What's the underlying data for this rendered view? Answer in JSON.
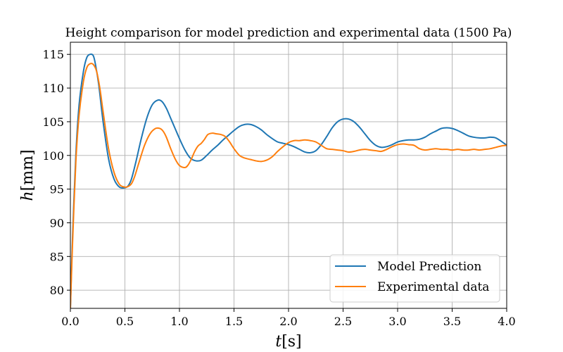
{
  "chart_data": {
    "type": "line",
    "title": "Height comparison for model prediction and experimental data (1500 Pa)",
    "xlabel_symbol": "t",
    "xlabel_unit": "[s]",
    "ylabel_symbol": "h",
    "ylabel_unit": "[mm]",
    "xlim": [
      0.0,
      4.0
    ],
    "ylim": [
      77.3,
      116.8
    ],
    "xticks": [
      0.0,
      0.5,
      1.0,
      1.5,
      2.0,
      2.5,
      3.0,
      3.5,
      4.0
    ],
    "xtick_labels": [
      "0.0",
      "0.5",
      "1.0",
      "1.5",
      "2.0",
      "2.5",
      "3.0",
      "3.5",
      "4.0"
    ],
    "yticks": [
      80,
      85,
      90,
      95,
      100,
      105,
      110,
      115
    ],
    "ytick_labels": [
      "80",
      "85",
      "90",
      "95",
      "100",
      "105",
      "110",
      "115"
    ],
    "grid": true,
    "legend_position": "lower-right",
    "series": [
      {
        "name": "Model Prediction",
        "color": "#1f77b4",
        "x": [
          0.0,
          0.02,
          0.05,
          0.08,
          0.12,
          0.15,
          0.18,
          0.21,
          0.23,
          0.26,
          0.3,
          0.35,
          0.4,
          0.45,
          0.5,
          0.53,
          0.56,
          0.6,
          0.65,
          0.7,
          0.75,
          0.8,
          0.84,
          0.88,
          0.92,
          0.96,
          1.0,
          1.05,
          1.1,
          1.15,
          1.2,
          1.25,
          1.3,
          1.35,
          1.4,
          1.45,
          1.5,
          1.55,
          1.6,
          1.65,
          1.7,
          1.75,
          1.8,
          1.85,
          1.9,
          1.95,
          2.0,
          2.05,
          2.1,
          2.15,
          2.2,
          2.25,
          2.3,
          2.35,
          2.4,
          2.45,
          2.5,
          2.55,
          2.6,
          2.65,
          2.7,
          2.75,
          2.8,
          2.85,
          2.9,
          2.95,
          3.0,
          3.05,
          3.1,
          3.15,
          3.2,
          3.25,
          3.3,
          3.35,
          3.4,
          3.45,
          3.5,
          3.55,
          3.6,
          3.65,
          3.7,
          3.75,
          3.8,
          3.85,
          3.9,
          3.95,
          4.0
        ],
        "y": [
          77.3,
          88.0,
          100.0,
          107.5,
          112.5,
          114.5,
          115.0,
          114.8,
          113.5,
          110.5,
          105.0,
          99.5,
          96.5,
          95.3,
          95.2,
          95.5,
          96.5,
          99.0,
          102.5,
          105.5,
          107.5,
          108.2,
          108.0,
          107.0,
          105.5,
          104.0,
          102.5,
          100.8,
          99.6,
          99.2,
          99.3,
          100.0,
          100.8,
          101.5,
          102.3,
          103.0,
          103.7,
          104.3,
          104.6,
          104.6,
          104.3,
          103.8,
          103.1,
          102.5,
          102.0,
          101.8,
          101.6,
          101.3,
          100.9,
          100.5,
          100.4,
          100.7,
          101.6,
          102.8,
          104.1,
          105.0,
          105.4,
          105.4,
          105.0,
          104.2,
          103.2,
          102.2,
          101.5,
          101.2,
          101.3,
          101.6,
          102.0,
          102.2,
          102.3,
          102.3,
          102.4,
          102.7,
          103.2,
          103.6,
          104.0,
          104.1,
          104.0,
          103.7,
          103.3,
          102.9,
          102.7,
          102.6,
          102.6,
          102.7,
          102.6,
          102.1,
          101.5
        ]
      },
      {
        "name": "Experimental data",
        "color": "#ff7f0e",
        "x": [
          0.0,
          0.02,
          0.05,
          0.08,
          0.12,
          0.15,
          0.18,
          0.21,
          0.24,
          0.27,
          0.3,
          0.35,
          0.4,
          0.45,
          0.5,
          0.53,
          0.56,
          0.59,
          0.63,
          0.68,
          0.73,
          0.78,
          0.82,
          0.85,
          0.88,
          0.92,
          0.96,
          1.0,
          1.05,
          1.08,
          1.11,
          1.14,
          1.17,
          1.2,
          1.23,
          1.26,
          1.3,
          1.34,
          1.38,
          1.42,
          1.46,
          1.5,
          1.55,
          1.6,
          1.65,
          1.7,
          1.75,
          1.8,
          1.85,
          1.9,
          1.95,
          2.0,
          2.05,
          2.1,
          2.15,
          2.2,
          2.25,
          2.3,
          2.35,
          2.4,
          2.45,
          2.5,
          2.55,
          2.6,
          2.65,
          2.7,
          2.75,
          2.8,
          2.85,
          2.9,
          2.95,
          3.0,
          3.05,
          3.1,
          3.15,
          3.2,
          3.25,
          3.3,
          3.35,
          3.4,
          3.45,
          3.5,
          3.55,
          3.6,
          3.65,
          3.7,
          3.75,
          3.8,
          3.85,
          3.9,
          3.95,
          4.0
        ],
        "y": [
          77.3,
          87.0,
          99.0,
          106.0,
          111.0,
          113.0,
          113.6,
          113.5,
          112.5,
          110.0,
          106.5,
          101.0,
          97.5,
          95.7,
          95.3,
          95.4,
          95.8,
          96.9,
          99.0,
          101.5,
          103.2,
          104.0,
          104.0,
          103.6,
          102.7,
          101.0,
          99.5,
          98.5,
          98.2,
          98.6,
          99.5,
          100.6,
          101.4,
          101.8,
          102.4,
          103.1,
          103.3,
          103.2,
          103.1,
          102.8,
          102.0,
          101.0,
          100.0,
          99.6,
          99.4,
          99.2,
          99.1,
          99.3,
          99.8,
          100.6,
          101.3,
          101.9,
          102.2,
          102.2,
          102.3,
          102.2,
          102.0,
          101.5,
          101.0,
          100.9,
          100.8,
          100.7,
          100.5,
          100.6,
          100.8,
          100.9,
          100.8,
          100.7,
          100.6,
          100.9,
          101.3,
          101.6,
          101.7,
          101.6,
          101.5,
          101.0,
          100.8,
          100.9,
          101.0,
          100.9,
          100.9,
          100.8,
          100.9,
          100.8,
          100.8,
          100.9,
          100.8,
          100.9,
          101.0,
          101.2,
          101.4,
          101.5
        ]
      }
    ]
  }
}
